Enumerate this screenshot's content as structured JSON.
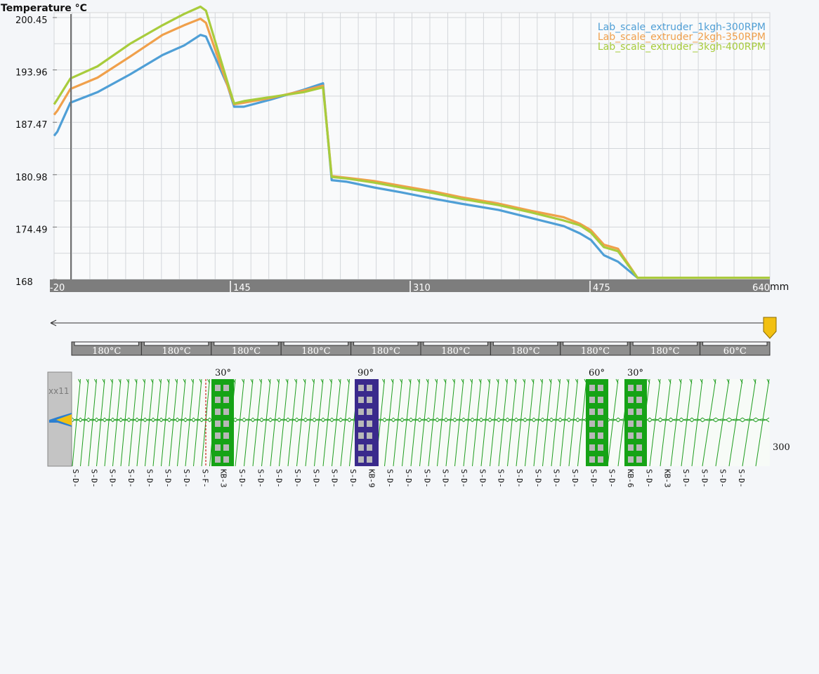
{
  "chart_data": {
    "type": "line",
    "title": "Temperature °C",
    "xunit": "mm",
    "xlim": [
      -20,
      640
    ],
    "ylim": [
      168,
      200.45
    ],
    "yticks": [
      "200.45",
      "193.96",
      "187.47",
      "180.98",
      "174.49",
      "168"
    ],
    "xticks": [
      "-20",
      "145",
      "310",
      "475",
      "640"
    ],
    "legend_position": "top-right",
    "grid": true,
    "series": [
      {
        "name": "Lab_scale_extruder_1kgh-300RPM",
        "color": "#4f9fd6",
        "points": [
          [
            -20,
            185.8
          ],
          [
            -17,
            186.3
          ],
          [
            -5,
            189.9
          ],
          [
            20,
            191.2
          ],
          [
            50,
            193.4
          ],
          [
            80,
            195.8
          ],
          [
            100,
            197.0
          ],
          [
            115,
            198.3
          ],
          [
            120,
            198.1
          ],
          [
            140,
            192.0
          ],
          [
            146,
            189.4
          ],
          [
            155,
            189.4
          ],
          [
            180,
            190.3
          ],
          [
            210,
            191.5
          ],
          [
            228,
            192.3
          ],
          [
            236,
            180.3
          ],
          [
            250,
            180.1
          ],
          [
            275,
            179.4
          ],
          [
            300,
            178.8
          ],
          [
            330,
            178.0
          ],
          [
            355,
            177.4
          ],
          [
            390,
            176.6
          ],
          [
            420,
            175.6
          ],
          [
            450,
            174.6
          ],
          [
            465,
            173.7
          ],
          [
            475,
            172.9
          ],
          [
            487,
            171.0
          ],
          [
            500,
            170.2
          ],
          [
            518,
            168.2
          ],
          [
            640,
            168.2
          ]
        ]
      },
      {
        "name": "Lab_scale_extruder_2kgh-350RPM",
        "color": "#f0a04b",
        "points": [
          [
            -20,
            188.4
          ],
          [
            -17,
            188.9
          ],
          [
            -5,
            191.6
          ],
          [
            20,
            193.0
          ],
          [
            50,
            195.6
          ],
          [
            80,
            198.3
          ],
          [
            100,
            199.5
          ],
          [
            115,
            200.3
          ],
          [
            120,
            199.8
          ],
          [
            140,
            192.0
          ],
          [
            146,
            189.7
          ],
          [
            155,
            189.9
          ],
          [
            180,
            190.5
          ],
          [
            210,
            191.4
          ],
          [
            228,
            192.0
          ],
          [
            236,
            180.8
          ],
          [
            250,
            180.6
          ],
          [
            275,
            180.2
          ],
          [
            300,
            179.6
          ],
          [
            330,
            178.9
          ],
          [
            355,
            178.2
          ],
          [
            390,
            177.4
          ],
          [
            420,
            176.5
          ],
          [
            450,
            175.7
          ],
          [
            465,
            174.9
          ],
          [
            475,
            174.1
          ],
          [
            487,
            172.3
          ],
          [
            500,
            171.8
          ],
          [
            518,
            168.2
          ],
          [
            640,
            168.2
          ]
        ]
      },
      {
        "name": "Lab_scale_extruder_3kgh-400RPM",
        "color": "#a8cc3c",
        "points": [
          [
            -20,
            189.7
          ],
          [
            -17,
            190.3
          ],
          [
            -5,
            192.9
          ],
          [
            20,
            194.4
          ],
          [
            50,
            197.2
          ],
          [
            80,
            199.5
          ],
          [
            100,
            200.9
          ],
          [
            115,
            201.8
          ],
          [
            120,
            201.3
          ],
          [
            140,
            192.4
          ],
          [
            146,
            189.8
          ],
          [
            155,
            190.1
          ],
          [
            180,
            190.6
          ],
          [
            210,
            191.2
          ],
          [
            228,
            191.8
          ],
          [
            236,
            180.7
          ],
          [
            250,
            180.5
          ],
          [
            275,
            180.0
          ],
          [
            300,
            179.4
          ],
          [
            330,
            178.7
          ],
          [
            355,
            178.0
          ],
          [
            390,
            177.2
          ],
          [
            420,
            176.3
          ],
          [
            450,
            175.3
          ],
          [
            465,
            174.7
          ],
          [
            475,
            173.8
          ],
          [
            487,
            172.0
          ],
          [
            500,
            171.5
          ],
          [
            518,
            168.2
          ],
          [
            640,
            168.2
          ]
        ]
      }
    ]
  },
  "barrel": {
    "zones": [
      "180°C",
      "180°C",
      "180°C",
      "180°C",
      "180°C",
      "180°C",
      "180°C",
      "180°C",
      "180°C",
      "60°C"
    ],
    "side_label": "xx11",
    "end_value": "300"
  },
  "screw": {
    "kneading_angles": [
      "30°",
      "90°",
      "60°",
      "30°"
    ],
    "element_labels": [
      "S-D-",
      "S-D-",
      "S-D-",
      "S-D-",
      "S-D-",
      "S-D-",
      "S-D-",
      "S-F-",
      "KB-3",
      "S-D-",
      "S-D-",
      "S-D-",
      "S-D-",
      "S-D-",
      "S-D-",
      "S-D-",
      "KB-9",
      "S-D-",
      "S-D-",
      "S-D-",
      "S-D-",
      "S-D-",
      "S-D-",
      "S-D-",
      "S-D-",
      "S-D-",
      "S-D-",
      "S-D-",
      "S-D-",
      "S-D-",
      "KB-6",
      "S-D-",
      "KB-3",
      "S-D-",
      "S-D-",
      "S-D-",
      "S-D-"
    ]
  },
  "colors": {
    "axis_band": "#7d7d7d",
    "barrel_fill": "#8f8f8f",
    "screw_green": "#1f9d1f",
    "kb_green": "#16a316",
    "kb_purple": "#3a2a8c",
    "marker_yellow": "#f2c012"
  }
}
